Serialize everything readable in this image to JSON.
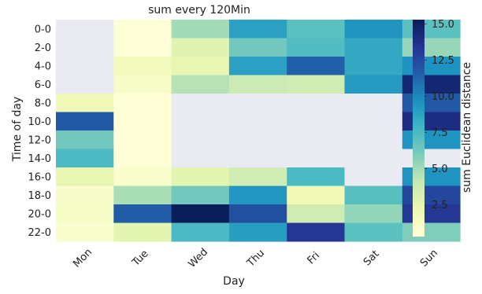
{
  "chart_data": {
    "type": "heatmap",
    "title": "sum every 120Min",
    "xlabel": "Day",
    "ylabel": "Time of day",
    "colorbar_label": "sum Euclidean distance",
    "x_categories": [
      "Mon",
      "Tue",
      "Wed",
      "Thu",
      "Fri",
      "Sat",
      "Sun"
    ],
    "y_categories": [
      "0-0",
      "2-0",
      "4-0",
      "6-0",
      "8-0",
      "10-0",
      "12-0",
      "14-0",
      "16-0",
      "18-0",
      "20-0",
      "22-0"
    ],
    "colormap": "YlGnBu",
    "missing_color": "#eaeaf2",
    "vmin": 0.3,
    "vmax": 15.3,
    "colorbar_ticks": [
      2.5,
      5.0,
      7.5,
      10.0,
      12.5,
      15.0
    ],
    "colorbar_tick_labels": [
      "2.5",
      "5.0",
      "7.5",
      "10.0",
      "12.5",
      "15.0"
    ],
    "values": [
      [
        null,
        0.5,
        5.0,
        8.9,
        7.0,
        9.5,
        7.0
      ],
      [
        null,
        0.5,
        2.8,
        6.3,
        7.3,
        8.5,
        5.3
      ],
      [
        null,
        1.6,
        2.4,
        8.9,
        11.5,
        8.5,
        9.6
      ],
      [
        null,
        1.1,
        4.5,
        3.8,
        3.7,
        9.2,
        14.5
      ],
      [
        1.8,
        0.4,
        null,
        null,
        null,
        null,
        11.8
      ],
      [
        11.8,
        0.4,
        null,
        null,
        null,
        null,
        14.0
      ],
      [
        6.3,
        0.4,
        null,
        null,
        null,
        null,
        9.5
      ],
      [
        7.5,
        0.4,
        null,
        null,
        null,
        null,
        null
      ],
      [
        2.4,
        0.9,
        2.6,
        3.6,
        7.5,
        null,
        9.5
      ],
      [
        1.0,
        4.8,
        6.3,
        9.4,
        1.8,
        7.1,
        12.6
      ],
      [
        1.2,
        11.7,
        15.2,
        12.2,
        3.7,
        5.4,
        13.3
      ],
      [
        0.8,
        2.6,
        7.5,
        9.0,
        13.3,
        7.0,
        5.9
      ]
    ]
  }
}
